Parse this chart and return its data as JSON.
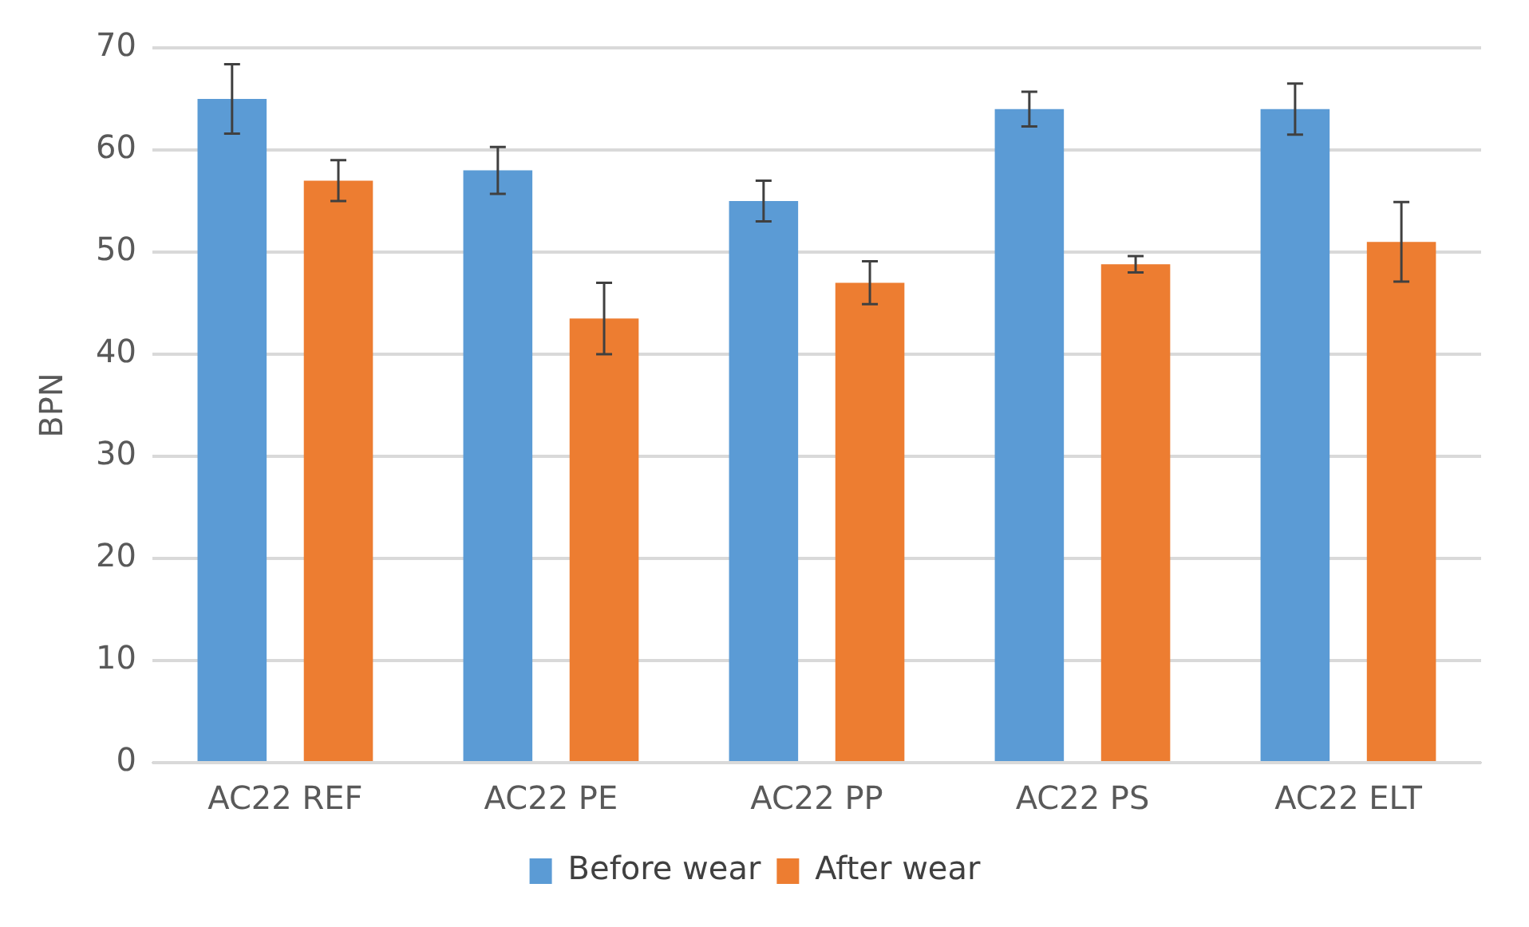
{
  "chart_data": {
    "type": "bar",
    "ylabel": "BPN",
    "categories": [
      "AC22 REF",
      "AC22 PE",
      "AC22 PP",
      "AC22 PS",
      "AC22 ELT"
    ],
    "series": [
      {
        "name": "Before wear",
        "color": "#5b9bd5",
        "values": [
          65,
          58,
          55,
          64,
          64
        ],
        "errors": [
          3.4,
          2.3,
          2,
          1.7,
          2.5
        ]
      },
      {
        "name": "After wear",
        "color": "#ed7d31",
        "values": [
          57,
          43.5,
          47,
          48.8,
          51
        ],
        "errors": [
          2,
          3.5,
          2.1,
          0.8,
          3.9
        ]
      }
    ],
    "ylim": [
      0,
      70
    ],
    "yticks": [
      0,
      10,
      20,
      30,
      40,
      50,
      60,
      70
    ],
    "grid": "y",
    "legend": "bottom"
  }
}
